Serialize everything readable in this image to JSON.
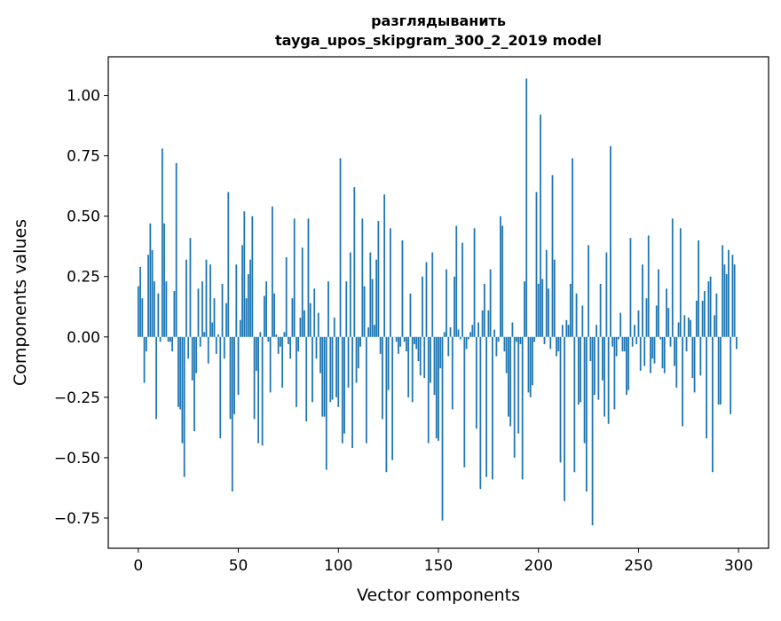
{
  "chart_data": {
    "type": "bar",
    "title": "разглядыванить",
    "subtitle": "tayga_upos_skipgram_300_2_2019 model",
    "xlabel": "Vector components",
    "ylabel": "Components values",
    "xlim": [
      -15,
      315
    ],
    "ylim": [
      -0.875,
      1.16
    ],
    "xticks": [
      0,
      50,
      100,
      150,
      200,
      250,
      300
    ],
    "yticks": [
      -0.75,
      -0.5,
      -0.25,
      0.0,
      0.25,
      0.5,
      0.75,
      1.0
    ],
    "ytick_labels": [
      "−0.75",
      "−0.50",
      "−0.25",
      "0.00",
      "0.25",
      "0.50",
      "0.75",
      "1.00"
    ],
    "bar_color": "#1f77b4",
    "grid": false,
    "values": [
      0.21,
      0.29,
      0.16,
      -0.19,
      -0.06,
      0.34,
      0.47,
      0.36,
      0.23,
      -0.34,
      0.18,
      -0.02,
      0.78,
      0.47,
      0.23,
      -0.02,
      -0.02,
      -0.06,
      0.19,
      0.72,
      -0.29,
      -0.3,
      -0.44,
      -0.58,
      0.32,
      -0.09,
      0.41,
      -0.18,
      -0.39,
      -0.15,
      0.2,
      -0.04,
      0.23,
      0.02,
      0.32,
      -0.11,
      0.3,
      0.06,
      0.16,
      -0.07,
      0.01,
      -0.42,
      0.22,
      -0.09,
      0.14,
      0.6,
      -0.34,
      -0.64,
      -0.32,
      0.3,
      -0.24,
      0.07,
      0.38,
      0.52,
      0.16,
      0.26,
      0.32,
      0.5,
      -0.34,
      -0.14,
      -0.44,
      0.02,
      -0.45,
      0.17,
      0.23,
      -0.02,
      -0.23,
      0.54,
      0.18,
      0.01,
      -0.07,
      -0.04,
      -0.21,
      0.02,
      0.33,
      -0.03,
      -0.09,
      0.16,
      0.49,
      -0.29,
      -0.06,
      0.08,
      0.37,
      0.11,
      -0.35,
      0.49,
      0.14,
      -0.27,
      0.2,
      -0.09,
      0.1,
      -0.15,
      -0.33,
      -0.33,
      -0.55,
      0.23,
      -0.27,
      -0.26,
      0.08,
      -0.25,
      -0.29,
      0.74,
      -0.44,
      -0.4,
      0.23,
      -0.21,
      0.35,
      -0.46,
      0.62,
      -0.19,
      -0.13,
      -0.04,
      0.49,
      0.21,
      -0.44,
      0.04,
      0.35,
      0.24,
      0.05,
      0.32,
      0.48,
      -0.07,
      -0.34,
      0.59,
      -0.56,
      -0.22,
      0.45,
      -0.51,
      0.0,
      -0.02,
      -0.07,
      -0.04,
      0.4,
      -0.02,
      -0.06,
      -0.25,
      0.18,
      -0.27,
      -0.03,
      -0.05,
      -0.1,
      -0.16,
      0.25,
      -0.17,
      0.31,
      -0.44,
      -0.19,
      0.35,
      -0.24,
      -0.42,
      -0.43,
      -0.13,
      -0.76,
      0.02,
      0.28,
      -0.08,
      0.04,
      -0.3,
      0.25,
      0.46,
      0.03,
      -0.01,
      0.39,
      -0.54,
      -0.05,
      -0.01,
      0.02,
      0.05,
      0.45,
      -0.38,
      0.06,
      -0.63,
      0.11,
      0.22,
      -0.58,
      0.11,
      0.28,
      -0.59,
      0.03,
      -0.08,
      -0.02,
      0.5,
      0.46,
      -0.06,
      -0.15,
      -0.33,
      -0.37,
      0.06,
      -0.5,
      -0.02,
      -0.4,
      -0.03,
      -0.59,
      0.23,
      1.07,
      -0.23,
      -0.25,
      -0.2,
      -0.02,
      0.6,
      0.22,
      0.92,
      0.24,
      -0.03,
      0.36,
      0.2,
      -0.05,
      0.67,
      0.32,
      -0.08,
      -0.06,
      -0.52,
      0.05,
      -0.68,
      0.07,
      0.05,
      0.22,
      0.74,
      -0.56,
      0.18,
      -0.28,
      -0.27,
      0.13,
      -0.44,
      -0.64,
      0.38,
      -0.1,
      -0.78,
      -0.24,
      0.05,
      -0.26,
      0.22,
      -0.18,
      -0.33,
      0.35,
      -0.36,
      0.79,
      -0.04,
      -0.3,
      -0.08,
      -0.01,
      0.1,
      -0.06,
      -0.06,
      -0.24,
      -0.22,
      0.41,
      -0.04,
      0.05,
      -0.03,
      0.11,
      -0.14,
      0.3,
      -0.12,
      0.16,
      0.42,
      -0.15,
      -0.09,
      -0.11,
      0.13,
      0.28,
      -0.01,
      -0.13,
      -0.15,
      0.2,
      0.12,
      -0.04,
      0.49,
      -0.12,
      -0.21,
      0.06,
      0.45,
      -0.37,
      0.09,
      -0.06,
      0.08,
      0.07,
      -0.17,
      -0.23,
      0.15,
      0.4,
      -0.16,
      0.15,
      0.19,
      -0.42,
      0.23,
      0.25,
      -0.56,
      0.09,
      0.18,
      -0.28,
      -0.28,
      0.38,
      0.3,
      0.26,
      0.36,
      -0.32,
      0.34,
      0.3,
      -0.05
    ]
  }
}
